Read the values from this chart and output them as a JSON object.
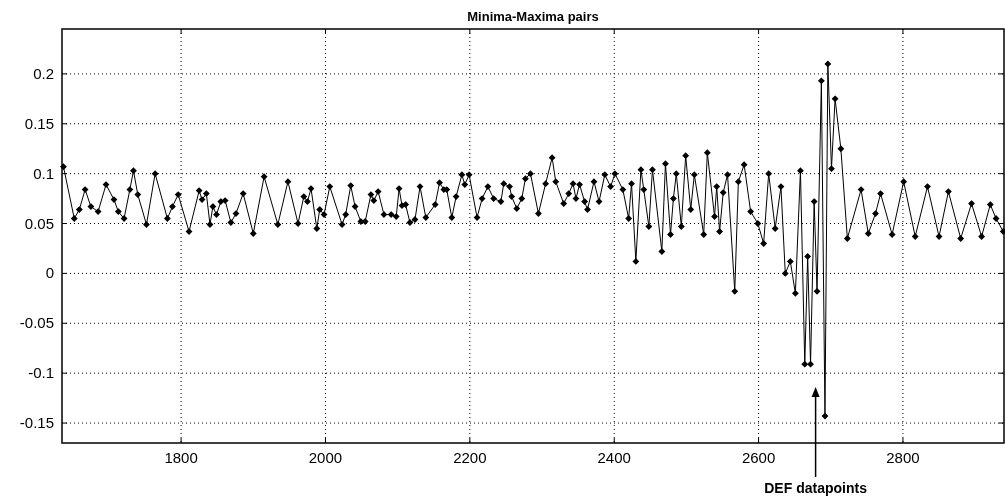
{
  "chart_data": {
    "type": "line",
    "title": "Minima-Maxima pairs",
    "xlim": [
      1635,
      2940
    ],
    "ylim": [
      -0.17,
      0.245
    ],
    "xticks": [
      1800,
      2000,
      2200,
      2400,
      2600,
      2800
    ],
    "yticks": [
      -0.15,
      -0.1,
      -0.05,
      0,
      0.05,
      0.1,
      0.15,
      0.2
    ],
    "grid": true,
    "marker": "diamond",
    "line_style": "solid",
    "annotations": [
      "DEF datapoints"
    ],
    "series": [
      {
        "color": "#000000",
        "x": [
          1637,
          1652,
          1659,
          1667,
          1675,
          1685,
          1696,
          1707,
          1713,
          1721,
          1729,
          1734,
          1740,
          1752,
          1764,
          1781,
          1788,
          1796,
          1811,
          1825,
          1829,
          1835,
          1840,
          1844,
          1849,
          1855,
          1861,
          1869,
          1876,
          1886,
          1900,
          1915,
          1934,
          1948,
          1962,
          1970,
          1975,
          1980,
          1988,
          1992,
          1998,
          2006,
          2023,
          2028,
          2035,
          2041,
          2049,
          2055,
          2063,
          2067,
          2073,
          2081,
          2091,
          2098,
          2102,
          2106,
          2111,
          2117,
          2124,
          2131,
          2139,
          2152,
          2158,
          2164,
          2168,
          2175,
          2181,
          2189,
          2193,
          2199,
          2210,
          2217,
          2225,
          2233,
          2243,
          2247,
          2255,
          2258,
          2265,
          2272,
          2277,
          2284,
          2295,
          2305,
          2314,
          2319,
          2330,
          2337,
          2343,
          2347,
          2352,
          2359,
          2363,
          2372,
          2379,
          2387,
          2395,
          2401,
          2412,
          2420,
          2424,
          2430,
          2437,
          2441,
          2448,
          2453,
          2466,
          2471,
          2478,
          2482,
          2486,
          2493,
          2499,
          2506,
          2511,
          2524,
          2529,
          2539,
          2542,
          2546,
          2551,
          2557,
          2567,
          2572,
          2580,
          2589,
          2599,
          2607,
          2614,
          2623,
          2631,
          2637,
          2644,
          2651,
          2658,
          2664,
          2668,
          2672,
          2677,
          2681,
          2687,
          2692,
          2696,
          2701,
          2706,
          2714,
          2723,
          2742,
          2752,
          2762,
          2769,
          2785,
          2801,
          2817,
          2834,
          2850,
          2863,
          2880,
          2895,
          2909,
          2921,
          2929,
          2939
        ],
        "values": [
          0.107,
          0.055,
          0.064,
          0.084,
          0.067,
          0.062,
          0.089,
          0.074,
          0.062,
          0.055,
          0.084,
          0.103,
          0.079,
          0.049,
          0.1,
          0.055,
          0.067,
          0.079,
          0.042,
          0.083,
          0.074,
          0.08,
          0.049,
          0.067,
          0.059,
          0.072,
          0.073,
          0.051,
          0.06,
          0.08,
          0.04,
          0.097,
          0.049,
          0.092,
          0.05,
          0.077,
          0.072,
          0.085,
          0.045,
          0.064,
          0.059,
          0.087,
          0.049,
          0.059,
          0.088,
          0.067,
          0.052,
          0.052,
          0.079,
          0.073,
          0.082,
          0.059,
          0.059,
          0.057,
          0.085,
          0.068,
          0.069,
          0.051,
          0.054,
          0.087,
          0.056,
          0.069,
          0.091,
          0.084,
          0.084,
          0.056,
          0.077,
          0.099,
          0.089,
          0.099,
          0.056,
          0.075,
          0.087,
          0.075,
          0.072,
          0.09,
          0.087,
          0.077,
          0.065,
          0.075,
          0.095,
          0.1,
          0.06,
          0.09,
          0.116,
          0.092,
          0.07,
          0.08,
          0.09,
          0.075,
          0.089,
          0.072,
          0.064,
          0.092,
          0.072,
          0.099,
          0.087,
          0.1,
          0.084,
          0.055,
          0.09,
          0.012,
          0.104,
          0.084,
          0.047,
          0.104,
          0.022,
          0.11,
          0.039,
          0.075,
          0.1,
          0.047,
          0.118,
          0.064,
          0.099,
          0.039,
          0.121,
          0.057,
          0.087,
          0.042,
          0.081,
          0.099,
          -0.018,
          0.092,
          0.109,
          0.062,
          0.05,
          0.03,
          0.1,
          0.045,
          0.087,
          0.0,
          0.012,
          -0.02,
          0.103,
          -0.091,
          0.017,
          -0.091,
          0.072,
          -0.018,
          0.193,
          -0.143,
          0.21,
          0.105,
          0.175,
          0.125,
          0.035,
          0.084,
          0.04,
          0.06,
          0.08,
          0.039,
          0.092,
          0.037,
          0.087,
          0.037,
          0.082,
          0.035,
          0.07,
          0.037,
          0.069,
          0.055,
          0.042
        ]
      }
    ]
  }
}
